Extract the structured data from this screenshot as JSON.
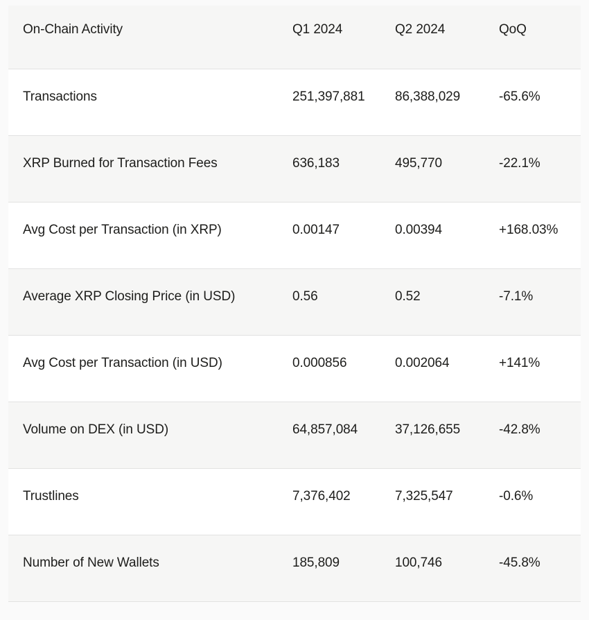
{
  "page": {
    "background": "#fafafa",
    "stripe_color": "#f6f6f5",
    "divider_color": "#e2e2e1",
    "text_color": "#1d1d1b"
  },
  "table": {
    "columns": [
      "On-Chain Activity",
      "Q1 2024",
      "Q2 2024",
      "QoQ"
    ],
    "rows": [
      {
        "label": "Transactions",
        "q1": "251,397,881",
        "q2": "86,388,029",
        "qoq": "-65.6%"
      },
      {
        "label": "XRP Burned for Transaction Fees",
        "q1": "636,183",
        "q2": "495,770",
        "qoq": "-22.1%"
      },
      {
        "label": "Avg Cost per Transaction (in XRP)",
        "q1": "0.00147",
        "q2": "0.00394",
        "qoq": "+168.03%"
      },
      {
        "label": "Average XRP Closing Price (in USD)",
        "q1": "0.56",
        "q2": "0.52",
        "qoq": "-7.1%"
      },
      {
        "label": "Avg Cost per Transaction (in USD)",
        "q1": "0.000856",
        "q2": "0.002064",
        "qoq": "+141%"
      },
      {
        "label": "Volume on DEX (in USD)",
        "q1": "64,857,084",
        "q2": "37,126,655",
        "qoq": "-42.8%"
      },
      {
        "label": "Trustlines",
        "q1": "7,376,402",
        "q2": "7,325,547",
        "qoq": "-0.6%"
      },
      {
        "label": "Number of New Wallets",
        "q1": "185,809",
        "q2": "100,746",
        "qoq": "-45.8%"
      }
    ]
  },
  "chart_data": {
    "type": "table",
    "title": "On-Chain Activity",
    "columns": [
      "On-Chain Activity",
      "Q1 2024",
      "Q2 2024",
      "QoQ"
    ],
    "rows": [
      [
        "Transactions",
        "251,397,881",
        "86,388,029",
        "-65.6%"
      ],
      [
        "XRP Burned for Transaction Fees",
        "636,183",
        "495,770",
        "-22.1%"
      ],
      [
        "Avg Cost per Transaction (in XRP)",
        "0.00147",
        "0.00394",
        "+168.03%"
      ],
      [
        "Average XRP Closing Price (in USD)",
        "0.56",
        "0.52",
        "-7.1%"
      ],
      [
        "Avg Cost per Transaction (in USD)",
        "0.000856",
        "0.002064",
        "+141%"
      ],
      [
        "Volume on DEX (in USD)",
        "64,857,084",
        "37,126,655",
        "-42.8%"
      ],
      [
        "Trustlines",
        "7,376,402",
        "7,325,547",
        "-0.6%"
      ],
      [
        "Number of New Wallets",
        "185,809",
        "100,746",
        "-45.8%"
      ]
    ],
    "layout": {
      "row_striping": "alternating white and light gray, header gray",
      "column_alignment": "all columns left-aligned",
      "dividers": "1px horizontal lines between rows, inset 12px from page edges"
    }
  }
}
